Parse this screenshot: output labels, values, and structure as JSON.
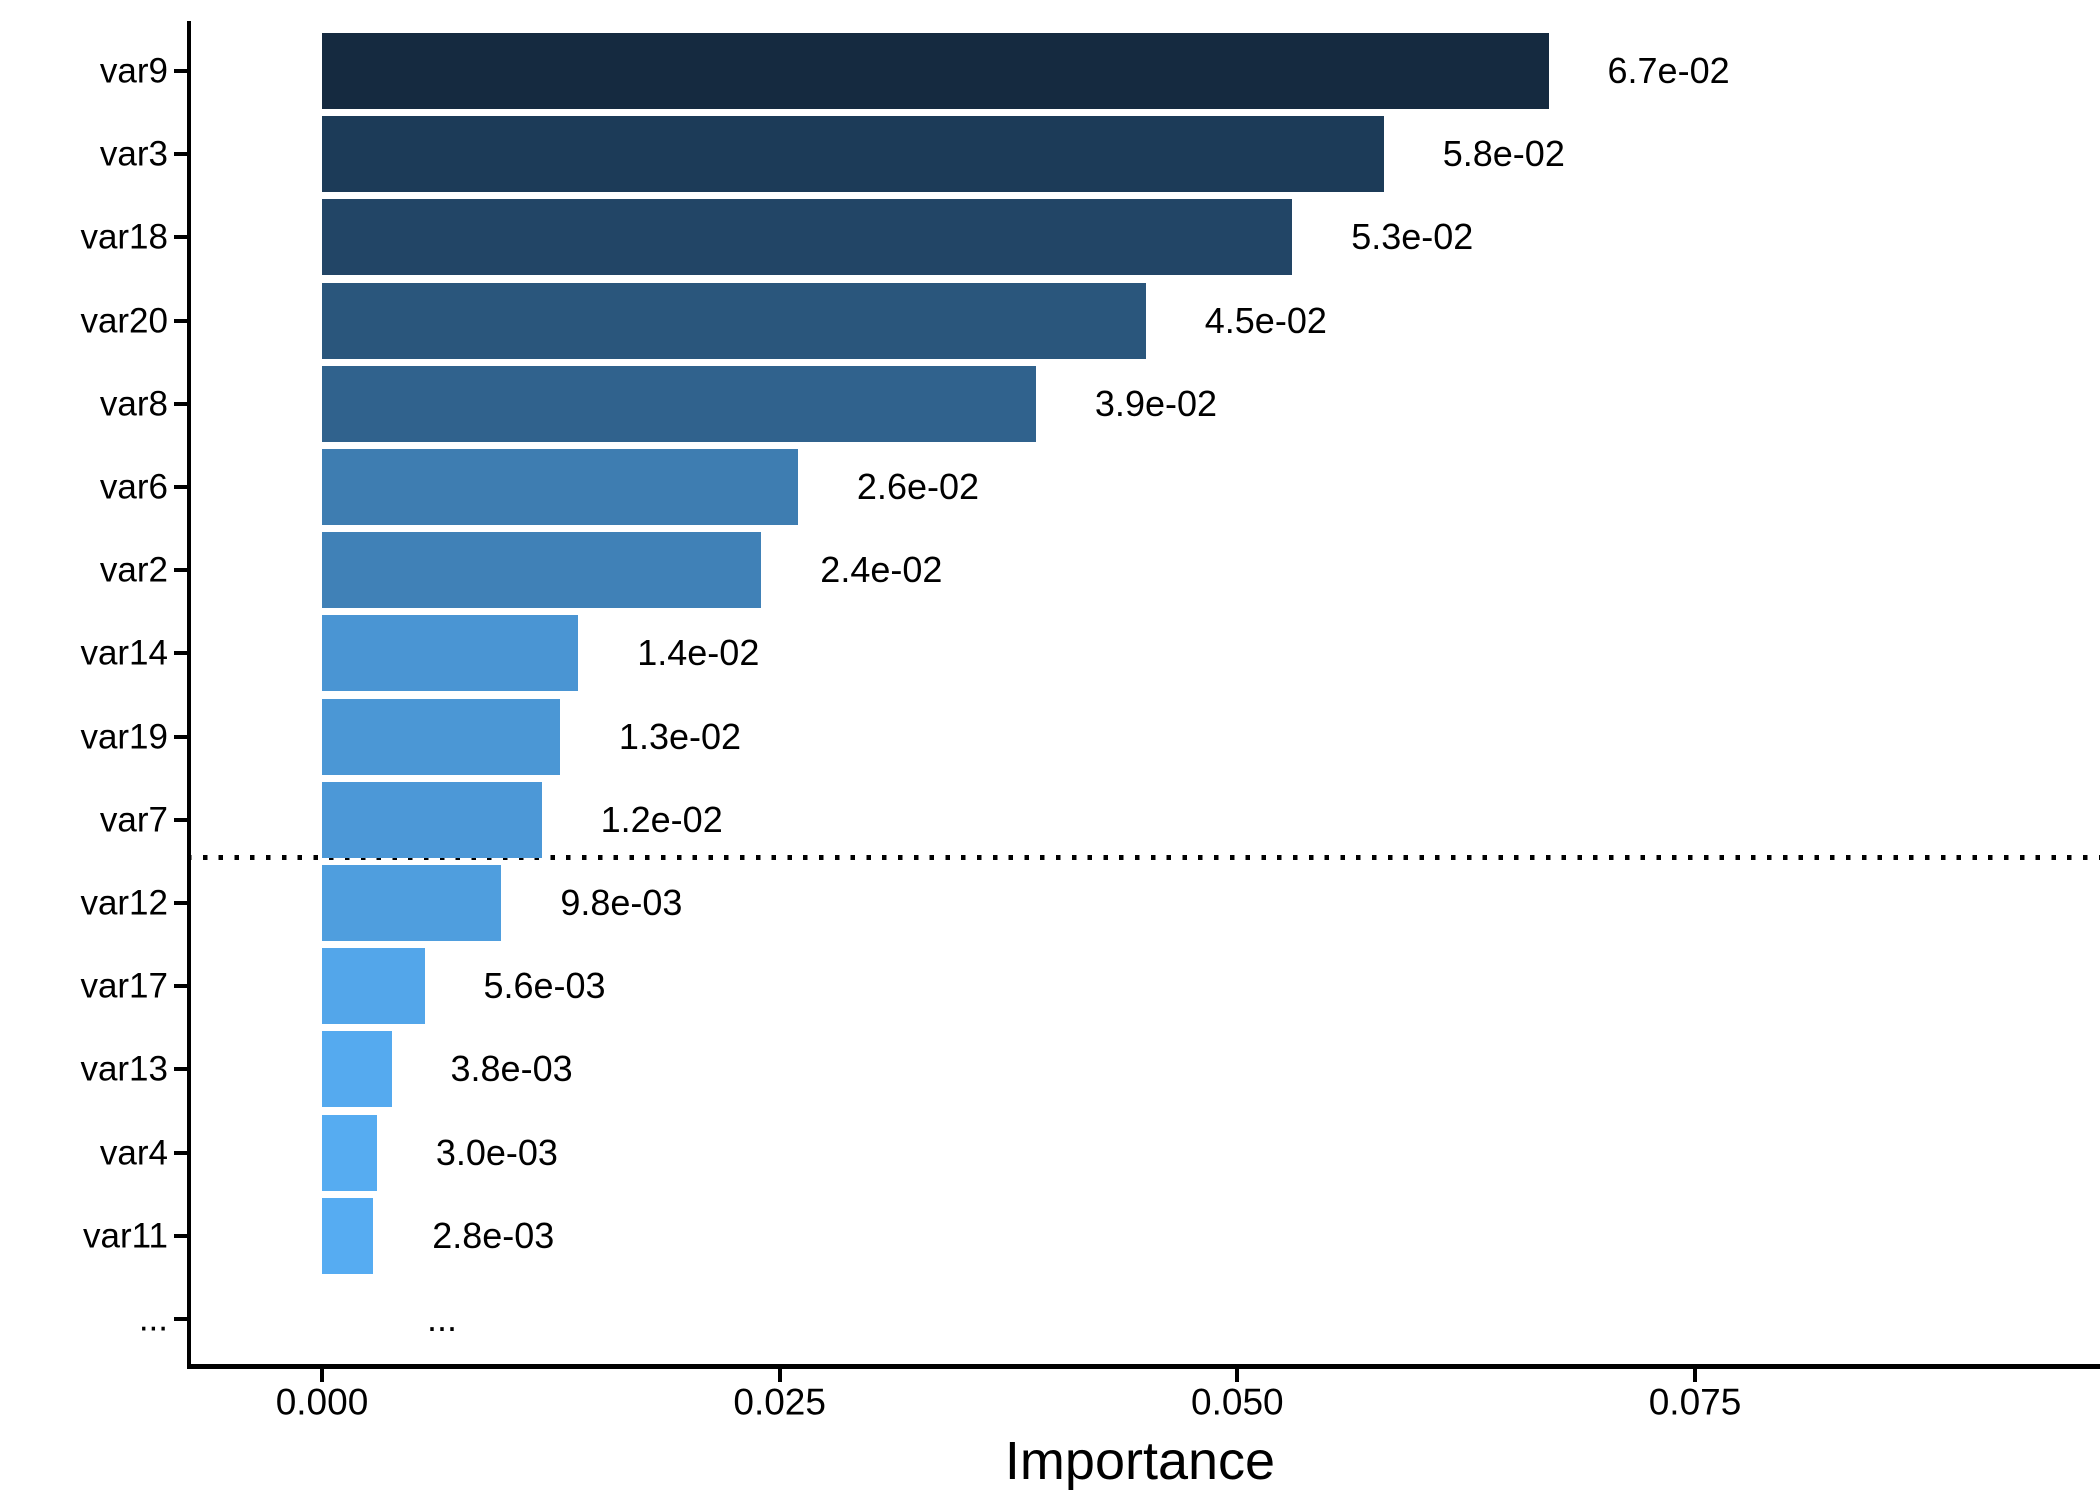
{
  "chart_data": {
    "type": "bar",
    "orientation": "horizontal",
    "title": "",
    "xlabel": "Importance",
    "ylabel": "",
    "grid": false,
    "legend_position": "none",
    "xlim": [
      -0.0074,
      0.0971
    ],
    "x_ticks": [
      {
        "label": "0.000",
        "value": 0
      },
      {
        "label": "0.025",
        "value": 0.025
      },
      {
        "label": "0.050",
        "value": 0.05
      },
      {
        "label": "0.075",
        "value": 0.075
      }
    ],
    "bars": [
      {
        "category": "var9",
        "value": 0.067,
        "label": "6.7e-02",
        "color": "#152A40"
      },
      {
        "category": "var3",
        "value": 0.058,
        "label": "5.8e-02",
        "color": "#1C3B58"
      },
      {
        "category": "var18",
        "value": 0.053,
        "label": "5.3e-02",
        "color": "#224566"
      },
      {
        "category": "var20",
        "value": 0.045,
        "label": "4.5e-02",
        "color": "#2A567C"
      },
      {
        "category": "var8",
        "value": 0.039,
        "label": "3.9e-02",
        "color": "#30628D"
      },
      {
        "category": "var6",
        "value": 0.026,
        "label": "2.6e-02",
        "color": "#3E7DB1"
      },
      {
        "category": "var2",
        "value": 0.024,
        "label": "2.4e-02",
        "color": "#4081B7"
      },
      {
        "category": "var14",
        "value": 0.014,
        "label": "1.4e-02",
        "color": "#4A95D3"
      },
      {
        "category": "var19",
        "value": 0.013,
        "label": "1.3e-02",
        "color": "#4B97D5"
      },
      {
        "category": "var7",
        "value": 0.012,
        "label": "1.2e-02",
        "color": "#4C98D7"
      },
      {
        "category": "var12",
        "value": 0.0098,
        "label": "9.8e-03",
        "color": "#4F9EDE"
      },
      {
        "category": "var17",
        "value": 0.0056,
        "label": "5.6e-03",
        "color": "#53A6EA"
      },
      {
        "category": "var13",
        "value": 0.0038,
        "label": "3.8e-03",
        "color": "#55AAEF"
      },
      {
        "category": "var4",
        "value": 0.003,
        "label": "3.0e-03",
        "color": "#56ACF1"
      },
      {
        "category": "var11",
        "value": 0.0028,
        "label": "2.8e-03",
        "color": "#56ACF2"
      },
      {
        "category": "...",
        "value": null,
        "label": "...",
        "color": null
      }
    ],
    "threshold_line": {
      "style": "dotted",
      "color": "#000000",
      "position_between": [
        "var7",
        "var12"
      ]
    }
  },
  "colors": {
    "background": "#FFFFFF",
    "axis": "#000000",
    "text": "#000000"
  }
}
